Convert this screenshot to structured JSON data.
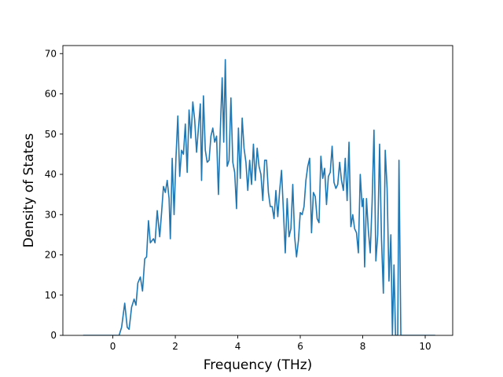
{
  "chart_data": {
    "type": "line",
    "title": "",
    "xlabel": "Frequency (THz)",
    "ylabel": "Density of States",
    "xlim": [
      -1.6,
      10.88
    ],
    "ylim": [
      0,
      72
    ],
    "xticks": [
      0,
      2,
      4,
      6,
      8,
      10
    ],
    "yticks": [
      0,
      10,
      20,
      30,
      40,
      50,
      60,
      70
    ],
    "grid": false,
    "legend": "none",
    "series": [
      {
        "color": "#1f77b4",
        "points": [
          [
            -0.95,
            0
          ],
          [
            0.2,
            0
          ],
          [
            0.28,
            2
          ],
          [
            0.38,
            8
          ],
          [
            0.46,
            2
          ],
          [
            0.52,
            1.5
          ],
          [
            0.6,
            7
          ],
          [
            0.68,
            9
          ],
          [
            0.74,
            7.5
          ],
          [
            0.8,
            13
          ],
          [
            0.88,
            14.5
          ],
          [
            0.95,
            11
          ],
          [
            1.02,
            19
          ],
          [
            1.08,
            19.5
          ],
          [
            1.14,
            28.5
          ],
          [
            1.2,
            23
          ],
          [
            1.3,
            24
          ],
          [
            1.35,
            23
          ],
          [
            1.42,
            31
          ],
          [
            1.5,
            24.5
          ],
          [
            1.56,
            30.5
          ],
          [
            1.62,
            37
          ],
          [
            1.68,
            35.5
          ],
          [
            1.74,
            38.5
          ],
          [
            1.8,
            34
          ],
          [
            1.84,
            24
          ],
          [
            1.9,
            44
          ],
          [
            1.96,
            30
          ],
          [
            2.02,
            44
          ],
          [
            2.08,
            54.5
          ],
          [
            2.14,
            39.5
          ],
          [
            2.2,
            46
          ],
          [
            2.26,
            45
          ],
          [
            2.32,
            52.5
          ],
          [
            2.38,
            40.5
          ],
          [
            2.44,
            56
          ],
          [
            2.5,
            49
          ],
          [
            2.56,
            58
          ],
          [
            2.62,
            53.5
          ],
          [
            2.68,
            45.5
          ],
          [
            2.74,
            51.5
          ],
          [
            2.8,
            57.5
          ],
          [
            2.84,
            38.5
          ],
          [
            2.9,
            59.5
          ],
          [
            2.96,
            46
          ],
          [
            3.02,
            43
          ],
          [
            3.08,
            43.5
          ],
          [
            3.14,
            49.5
          ],
          [
            3.2,
            51.5
          ],
          [
            3.26,
            48
          ],
          [
            3.32,
            49.5
          ],
          [
            3.38,
            35
          ],
          [
            3.44,
            51
          ],
          [
            3.5,
            64
          ],
          [
            3.55,
            48
          ],
          [
            3.6,
            68.5
          ],
          [
            3.66,
            42
          ],
          [
            3.72,
            43.5
          ],
          [
            3.78,
            59
          ],
          [
            3.84,
            43
          ],
          [
            3.9,
            40.5
          ],
          [
            3.96,
            31.5
          ],
          [
            4.02,
            51.5
          ],
          [
            4.08,
            39
          ],
          [
            4.14,
            54
          ],
          [
            4.2,
            46.5
          ],
          [
            4.26,
            43
          ],
          [
            4.32,
            36
          ],
          [
            4.38,
            43.5
          ],
          [
            4.44,
            37.5
          ],
          [
            4.5,
            47.5
          ],
          [
            4.56,
            38.5
          ],
          [
            4.62,
            46.5
          ],
          [
            4.68,
            42
          ],
          [
            4.74,
            40
          ],
          [
            4.8,
            33.5
          ],
          [
            4.86,
            43.5
          ],
          [
            4.92,
            43.5
          ],
          [
            4.98,
            35.5
          ],
          [
            5.04,
            32
          ],
          [
            5.1,
            32
          ],
          [
            5.16,
            29
          ],
          [
            5.22,
            36
          ],
          [
            5.28,
            29.5
          ],
          [
            5.34,
            36
          ],
          [
            5.4,
            41
          ],
          [
            5.46,
            31
          ],
          [
            5.52,
            20.5
          ],
          [
            5.58,
            34
          ],
          [
            5.64,
            24.5
          ],
          [
            5.7,
            26.5
          ],
          [
            5.76,
            37.5
          ],
          [
            5.82,
            24.5
          ],
          [
            5.88,
            19.5
          ],
          [
            5.94,
            23.5
          ],
          [
            6.0,
            30.5
          ],
          [
            6.06,
            30
          ],
          [
            6.12,
            32
          ],
          [
            6.18,
            38.5
          ],
          [
            6.24,
            42
          ],
          [
            6.3,
            44
          ],
          [
            6.36,
            25.5
          ],
          [
            6.42,
            35.5
          ],
          [
            6.48,
            34.5
          ],
          [
            6.54,
            29
          ],
          [
            6.6,
            28
          ],
          [
            6.66,
            44.5
          ],
          [
            6.72,
            39
          ],
          [
            6.78,
            41.5
          ],
          [
            6.84,
            32.5
          ],
          [
            6.9,
            39.5
          ],
          [
            6.96,
            40.5
          ],
          [
            7.02,
            47
          ],
          [
            7.08,
            38
          ],
          [
            7.14,
            36.5
          ],
          [
            7.2,
            37.5
          ],
          [
            7.26,
            43
          ],
          [
            7.32,
            38.5
          ],
          [
            7.38,
            36
          ],
          [
            7.44,
            44
          ],
          [
            7.5,
            33.5
          ],
          [
            7.56,
            48
          ],
          [
            7.62,
            27
          ],
          [
            7.68,
            30
          ],
          [
            7.74,
            26.5
          ],
          [
            7.8,
            25.5
          ],
          [
            7.86,
            20.5
          ],
          [
            7.92,
            40
          ],
          [
            7.98,
            32
          ],
          [
            8.02,
            34
          ],
          [
            8.06,
            17
          ],
          [
            8.12,
            34
          ],
          [
            8.18,
            26
          ],
          [
            8.24,
            20.5
          ],
          [
            8.3,
            33
          ],
          [
            8.36,
            51
          ],
          [
            8.42,
            18.5
          ],
          [
            8.48,
            25
          ],
          [
            8.54,
            47.5
          ],
          [
            8.6,
            24
          ],
          [
            8.66,
            10.5
          ],
          [
            8.72,
            46
          ],
          [
            8.78,
            36.5
          ],
          [
            8.84,
            13.5
          ],
          [
            8.9,
            25
          ],
          [
            8.95,
            0
          ],
          [
            9.0,
            17.5
          ],
          [
            9.05,
            0
          ],
          [
            9.12,
            0
          ],
          [
            9.16,
            43.5
          ],
          [
            9.22,
            0
          ],
          [
            10.32,
            0
          ]
        ]
      }
    ]
  }
}
